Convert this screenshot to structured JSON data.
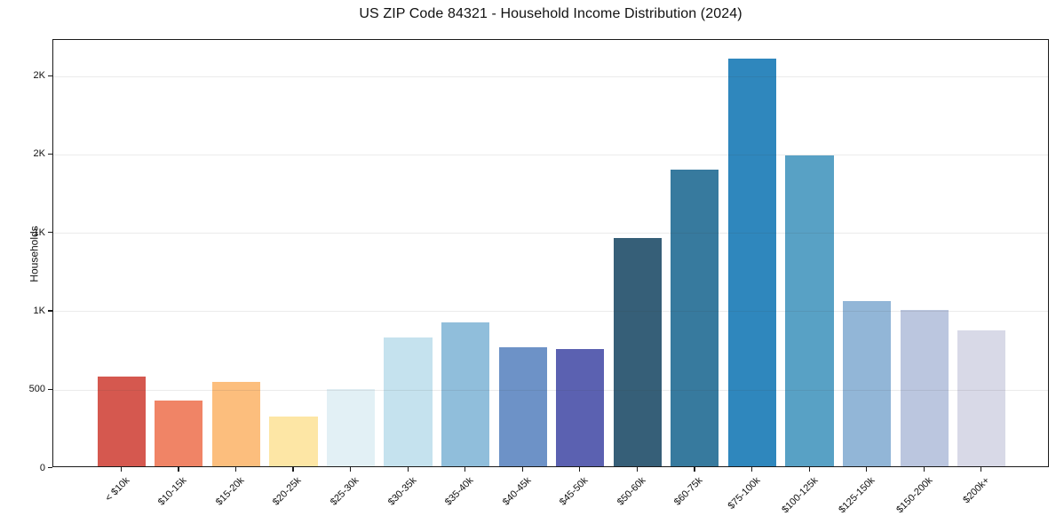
{
  "chart_data": {
    "type": "bar",
    "title": "US ZIP Code 84321 - Household Income Distribution (2024)",
    "xlabel": "",
    "ylabel": "Households",
    "categories": [
      "< $10k",
      "$10-15k",
      "$15-20k",
      "$20-25k",
      "$25-30k",
      "$30-35k",
      "$35-40k",
      "$40-45k",
      "$45-50k",
      "$50-60k",
      "$60-75k",
      "$75-100k",
      "$100-125k",
      "$125-150k",
      "$150-200k",
      "$200k+"
    ],
    "values": [
      570,
      420,
      540,
      320,
      495,
      820,
      915,
      760,
      750,
      1455,
      1890,
      2600,
      1980,
      1055,
      995,
      865
    ],
    "bar_colors": [
      "#d5584f",
      "#f08466",
      "#fcbe7d",
      "#fde6a5",
      "#e2f0f5",
      "#c5e2ee",
      "#90bedb",
      "#6d92c7",
      "#5b61b1",
      "#365f78",
      "#377a9e",
      "#2f87bd",
      "#58a1c5",
      "#92b6d7",
      "#bbc6df",
      "#d8d9e7"
    ],
    "ylim": [
      0,
      2730
    ],
    "yticks": [
      {
        "value": 0,
        "label": "0"
      },
      {
        "value": 500,
        "label": "500"
      },
      {
        "value": 1000,
        "label": "1K"
      },
      {
        "value": 1500,
        "label": "1K"
      },
      {
        "value": 2000,
        "label": "2K"
      },
      {
        "value": 2500,
        "label": "2K"
      }
    ],
    "grid": true,
    "legend_position": "none",
    "x_tick_rotation_deg": 45
  },
  "colors": {
    "background": "#ffffff",
    "spine": "#1a1a1a",
    "grid": "#e8e8e8",
    "text": "#111111"
  }
}
